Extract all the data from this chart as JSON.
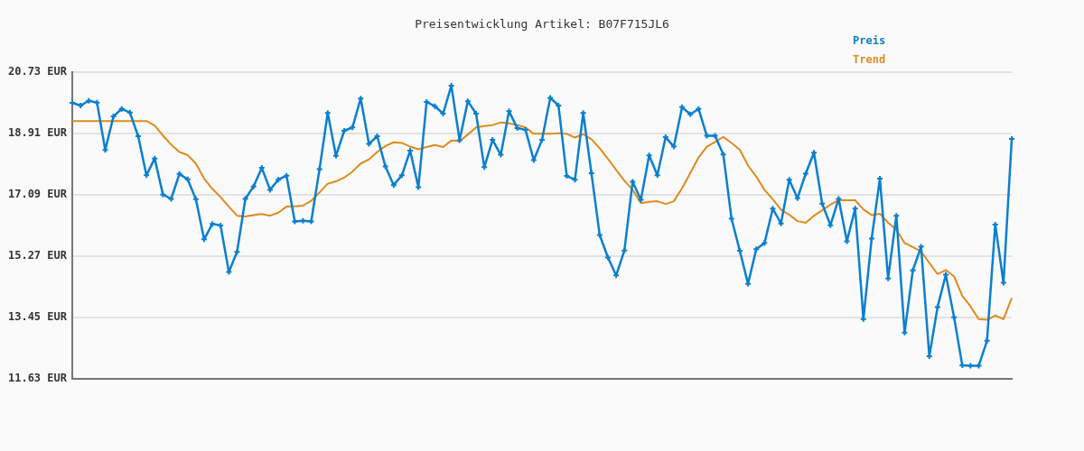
{
  "chart_data": {
    "type": "line",
    "title": "Preisentwicklung Artikel: B07F715JL6",
    "categories": [
      null,
      null,
      null,
      null,
      null,
      null,
      null,
      null,
      null,
      null,
      null,
      null,
      null,
      null,
      null,
      null,
      null,
      null,
      null,
      null,
      null,
      null,
      null,
      null,
      null,
      null,
      null,
      null,
      null,
      null,
      null,
      null,
      null,
      null,
      null,
      null,
      null,
      null,
      null,
      null,
      null,
      null,
      null,
      null,
      null,
      null,
      null,
      null,
      null,
      null,
      null,
      null,
      null,
      null,
      null,
      null,
      null,
      null,
      null,
      null,
      null,
      null,
      null,
      null,
      null,
      null,
      null,
      null,
      null,
      null,
      null,
      null,
      null,
      null,
      null,
      null,
      null,
      null,
      null,
      null,
      null,
      null,
      null,
      null,
      null,
      null,
      null,
      null,
      null,
      null,
      null,
      null,
      null,
      null,
      null,
      null,
      null,
      null,
      null,
      null,
      null,
      null,
      null,
      null,
      null,
      null,
      null,
      null,
      null,
      null,
      null,
      null,
      null,
      null,
      null
    ],
    "series": [
      {
        "name": "Preis",
        "color": "#0a7fcf",
        "marker": "cross",
        "values": [
          19.82,
          19.74,
          19.88,
          19.83,
          18.42,
          19.42,
          19.64,
          19.53,
          18.83,
          17.67,
          18.17,
          17.1,
          16.97,
          17.71,
          17.55,
          16.96,
          15.77,
          16.23,
          16.18,
          14.8,
          15.4,
          16.97,
          17.34,
          17.89,
          17.24,
          17.54,
          17.66,
          16.3,
          16.32,
          16.3,
          17.85,
          19.52,
          18.25,
          18.99,
          19.09,
          19.95,
          18.6,
          18.83,
          17.93,
          17.38,
          17.67,
          18.4,
          17.32,
          19.85,
          19.72,
          19.5,
          20.33,
          18.71,
          19.87,
          19.5,
          17.91,
          18.72,
          18.28,
          19.57,
          19.07,
          19.02,
          18.12,
          18.72,
          19.97,
          19.74,
          17.65,
          17.54,
          19.52,
          17.73,
          15.9,
          15.23,
          14.7,
          15.44,
          17.48,
          16.94,
          18.26,
          17.67,
          18.8,
          18.52,
          19.69,
          19.48,
          19.64,
          18.84,
          18.84,
          18.29,
          16.38,
          15.43,
          14.45,
          15.48,
          15.66,
          16.68,
          16.24,
          17.54,
          16.99,
          17.72,
          18.34,
          16.83,
          16.19,
          16.97,
          15.71,
          16.68,
          13.4,
          15.79,
          17.57,
          14.61,
          16.47,
          13.0,
          14.85,
          15.55,
          12.3,
          13.76,
          14.72,
          13.46,
          12.03,
          12.02,
          12.02,
          12.76,
          16.21,
          14.48,
          18.75
        ]
      },
      {
        "name": "Trend",
        "color": "#e08a1e",
        "marker": "none",
        "values": [
          19.28,
          19.28,
          19.28,
          19.28,
          19.28,
          19.28,
          19.28,
          19.28,
          19.28,
          19.28,
          19.15,
          18.85,
          18.58,
          18.36,
          18.27,
          18.02,
          17.57,
          17.27,
          17.02,
          16.74,
          16.47,
          16.45,
          16.49,
          16.52,
          16.47,
          16.56,
          16.74,
          16.75,
          16.77,
          16.91,
          17.16,
          17.42,
          17.49,
          17.6,
          17.78,
          18.02,
          18.14,
          18.36,
          18.54,
          18.65,
          18.63,
          18.52,
          18.44,
          18.51,
          18.57,
          18.51,
          18.7,
          18.68,
          18.88,
          19.09,
          19.13,
          19.16,
          19.24,
          19.21,
          19.16,
          19.09,
          18.9,
          18.9,
          18.9,
          18.92,
          18.9,
          18.79,
          18.89,
          18.74,
          18.47,
          18.16,
          17.83,
          17.51,
          17.24,
          16.84,
          16.88,
          16.9,
          16.82,
          16.9,
          17.29,
          17.74,
          18.2,
          18.52,
          18.66,
          18.81,
          18.63,
          18.43,
          17.96,
          17.63,
          17.24,
          16.96,
          16.65,
          16.5,
          16.31,
          16.26,
          16.47,
          16.63,
          16.8,
          16.93,
          16.93,
          16.93,
          16.66,
          16.49,
          16.53,
          16.26,
          16.06,
          15.66,
          15.54,
          15.41,
          15.07,
          14.74,
          14.86,
          14.67,
          14.09,
          13.78,
          13.4,
          13.38,
          13.51,
          13.4,
          14.03
        ]
      }
    ],
    "ylim": [
      11.63,
      20.73
    ],
    "yticks": [
      {
        "value": 11.63,
        "label": "11.63 EUR"
      },
      {
        "value": 13.45,
        "label": "13.45 EUR"
      },
      {
        "value": 15.27,
        "label": "15.27 EUR"
      },
      {
        "value": 17.09,
        "label": "17.09 EUR"
      },
      {
        "value": 18.91,
        "label": "18.91 EUR"
      },
      {
        "value": 20.73,
        "label": "20.73 EUR"
      }
    ],
    "grid": "y",
    "legend": "top right",
    "tick_labels": "y",
    "line_style": "solid"
  }
}
